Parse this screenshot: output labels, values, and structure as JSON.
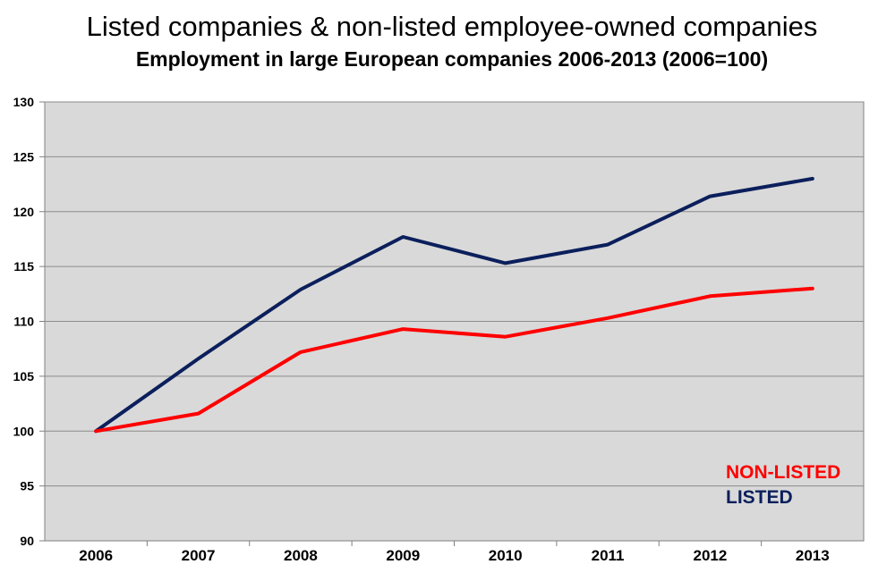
{
  "chart_data": {
    "type": "line",
    "title": "Listed companies & non-listed employee-owned companies",
    "subtitle": "Employment in large European companies 2006-2013 (2006=100)",
    "xlabel": "",
    "ylabel": "",
    "categories": [
      "2006",
      "2007",
      "2008",
      "2009",
      "2010",
      "2011",
      "2012",
      "2013"
    ],
    "ylim": [
      90,
      130
    ],
    "yticks": [
      90,
      95,
      100,
      105,
      110,
      115,
      120,
      125,
      130
    ],
    "grid": true,
    "legend_position": "bottom-right",
    "plot_background": "#d9d9d9",
    "series": [
      {
        "name": "LISTED",
        "color": "#0b1f5c",
        "values": [
          100,
          106.6,
          112.9,
          117.7,
          115.3,
          117.0,
          121.4,
          123.0
        ]
      },
      {
        "name": "NON-LISTED",
        "color": "#ff0000",
        "values": [
          100,
          101.6,
          107.2,
          109.3,
          108.6,
          110.3,
          112.3,
          113.0
        ]
      }
    ],
    "legend": [
      {
        "name": "NON-LISTED",
        "color": "#ff0000"
      },
      {
        "name": "LISTED",
        "color": "#0b1f5c"
      }
    ]
  }
}
